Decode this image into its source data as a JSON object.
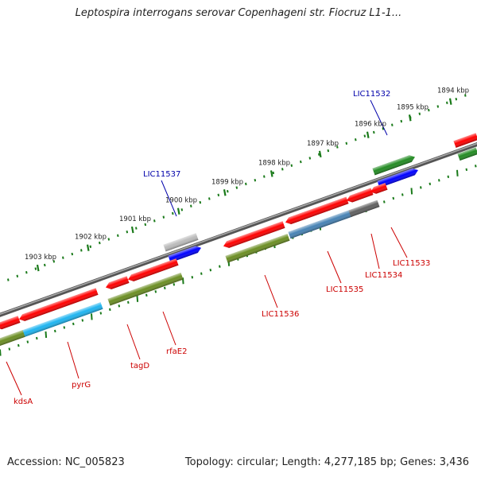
{
  "title": "Leptospira interrogans serovar Copenhageni str. Fiocruz L1-1...",
  "footer": {
    "accession": "Accession: NC_005823",
    "topology": "Topology: circular; Length: 4,277,185 bp; Genes: 3,436"
  },
  "scale_labels": [
    {
      "label": "1894 kbp",
      "pos": 1894
    },
    {
      "label": "1895 kbp",
      "pos": 1895
    },
    {
      "label": "1896 kbp",
      "pos": 1896
    },
    {
      "label": "1897 kbp",
      "pos": 1897
    },
    {
      "label": "1898 kbp",
      "pos": 1898
    },
    {
      "label": "1899 kbp",
      "pos": 1899
    },
    {
      "label": "1900 kbp",
      "pos": 1900
    },
    {
      "label": "1901 kbp",
      "pos": 1901
    },
    {
      "label": "1902 kbp",
      "pos": 1902
    },
    {
      "label": "1903 kbp",
      "pos": 1903
    }
  ],
  "gene_labels": [
    {
      "name": "LIC11532",
      "color": "#0000aa"
    },
    {
      "name": "LIC11537",
      "color": "#0000aa"
    },
    {
      "name": "LIC11533",
      "color": "#cc0000"
    },
    {
      "name": "LIC11534",
      "color": "#cc0000"
    },
    {
      "name": "LIC11535",
      "color": "#cc0000"
    },
    {
      "name": "LIC11536",
      "color": "#cc0000"
    },
    {
      "name": "rfaE2",
      "color": "#cc0000"
    },
    {
      "name": "tagD",
      "color": "#cc0000"
    },
    {
      "name": "pyrG",
      "color": "#cc0000"
    },
    {
      "name": "kdsA",
      "color": "#cc0000"
    }
  ],
  "colors": {
    "cds_red": "#ff0000",
    "cds_blue": "#0000ff",
    "cds_green": "#228b22",
    "cog_olive": "#6b8e23",
    "cog_skyblue": "#1eb4f0",
    "cog_steel": "#4682b4",
    "cog_gray": "#606060",
    "cog_lightgray": "#bbbbbb",
    "backbone": "#777777",
    "tick_green": "#1a7a1a"
  }
}
